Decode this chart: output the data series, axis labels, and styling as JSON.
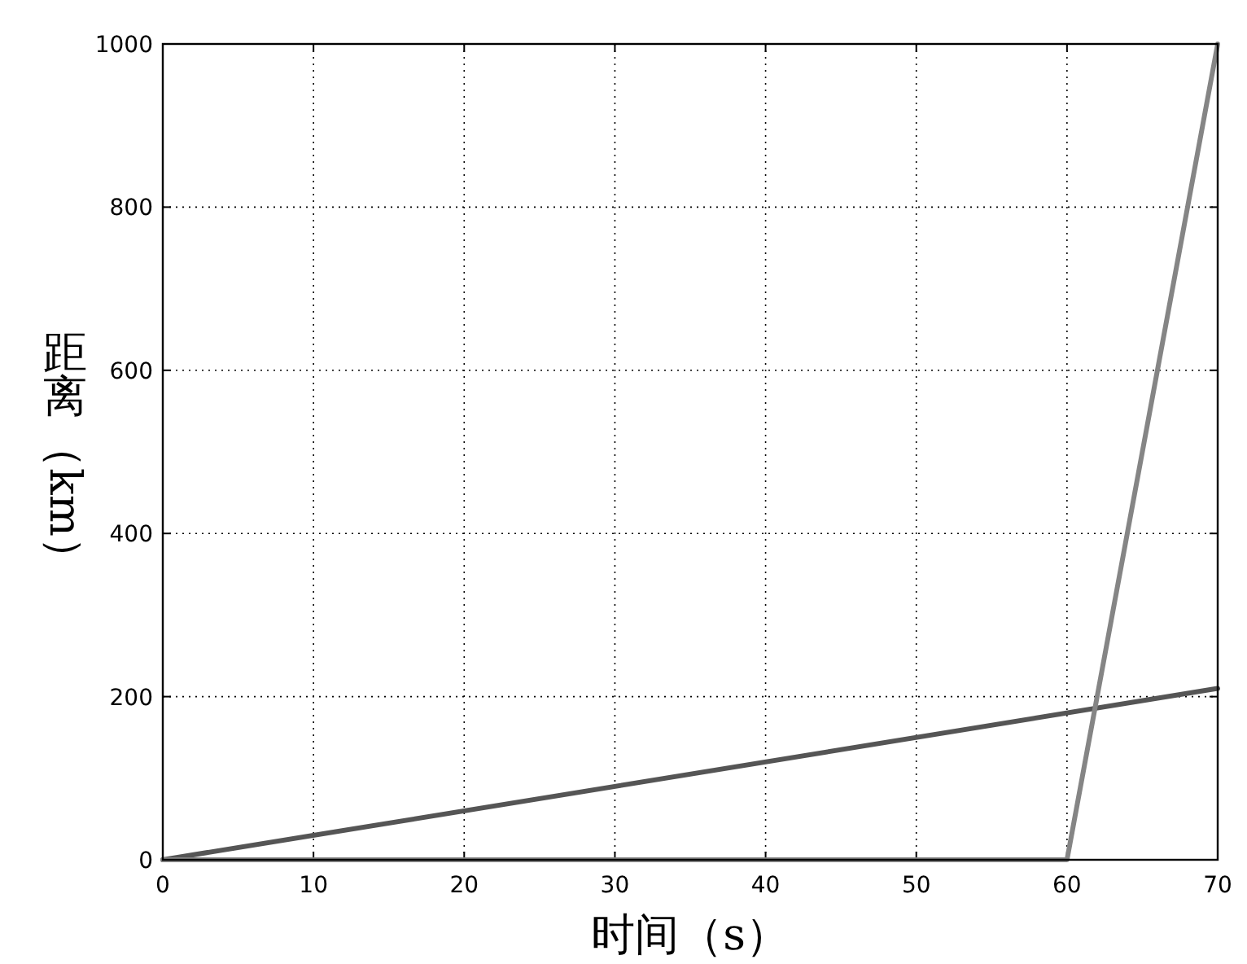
{
  "chart_data": {
    "type": "line",
    "xlabel": "时间（s）",
    "ylabel": "距离（km）",
    "series": [
      {
        "color": "#555555",
        "x": [
          0,
          70
        ],
        "values": [
          0,
          210
        ]
      },
      {
        "color": "#858585",
        "x": [
          0,
          60,
          70
        ],
        "values": [
          0,
          0,
          1000
        ]
      }
    ],
    "xlim": [
      0,
      70
    ],
    "ylim": [
      0,
      1000
    ],
    "xticks": [
      0,
      10,
      20,
      30,
      40,
      50,
      60,
      70
    ],
    "yticks": [
      0,
      200,
      400,
      600,
      800,
      1000
    ],
    "grid": true
  }
}
